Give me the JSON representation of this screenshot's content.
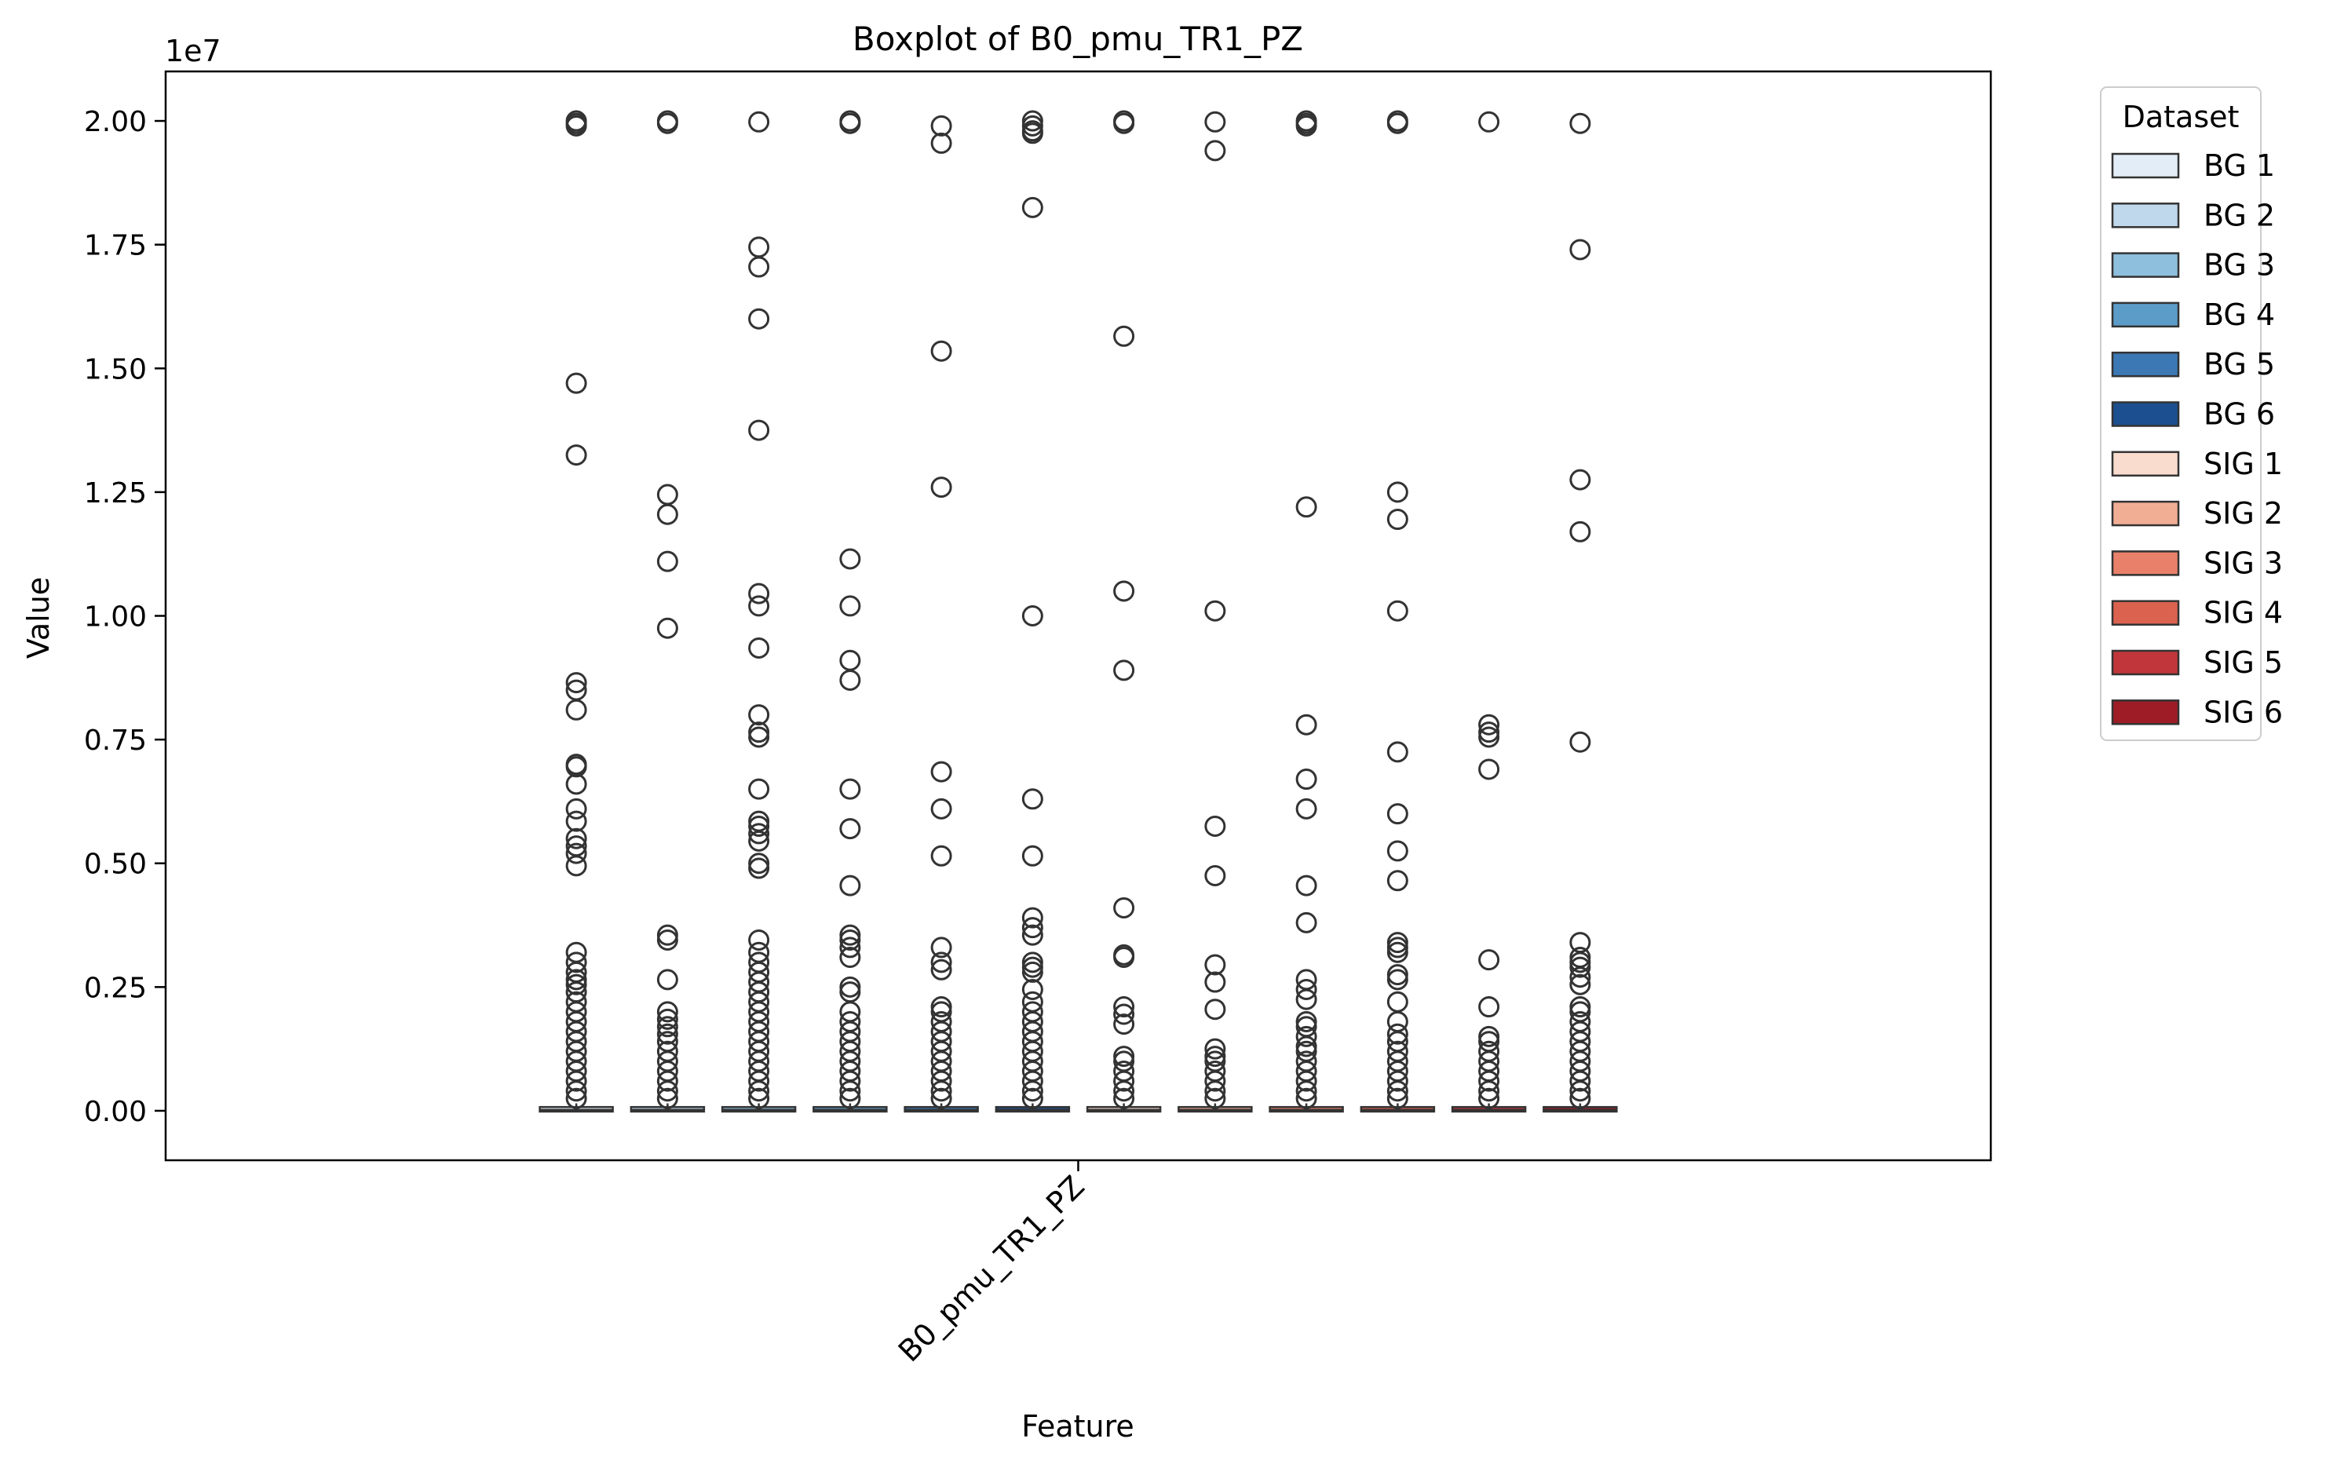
{
  "chart_data": {
    "type": "boxplot",
    "title": "Boxplot of B0_pmu_TR1_PZ",
    "xlabel": "Feature",
    "ylabel": "Value",
    "y_scale_label": "1e7",
    "y_multiplier": 10000000,
    "ylim": [
      -0.1,
      2.1
    ],
    "yticks": [
      0.0,
      0.25,
      0.5,
      0.75,
      1.0,
      1.25,
      1.5,
      1.75,
      2.0
    ],
    "ytick_labels": [
      "0.00",
      "0.25",
      "0.50",
      "0.75",
      "1.00",
      "1.25",
      "1.50",
      "1.75",
      "2.00"
    ],
    "categories": [
      "B0_pmu_TR1_PZ"
    ],
    "legend": {
      "title": "Dataset",
      "placement": "outside-right",
      "entries": [
        "BG 1",
        "BG 2",
        "BG 3",
        "BG 4",
        "BG 5",
        "BG 6",
        "SIG 1",
        "SIG 2",
        "SIG 3",
        "SIG 4",
        "SIG 5",
        "SIG 6"
      ]
    },
    "series": [
      {
        "name": "BG 1",
        "color": "#e2edf8",
        "q1": 0.0,
        "median": 0.002,
        "q3": 0.006,
        "whisker_low": 0.0,
        "whisker_high": 0.015,
        "outliers": [
          2.0,
          1.995,
          1.99,
          1.47,
          1.325,
          0.865,
          0.85,
          0.81,
          0.7,
          0.695,
          0.66,
          0.61,
          0.585,
          0.55,
          0.535,
          0.52,
          0.495,
          0.32,
          0.3,
          0.28,
          0.265,
          0.255,
          0.24,
          0.22,
          0.2,
          0.18,
          0.16,
          0.14,
          0.12,
          0.1,
          0.08,
          0.06,
          0.04,
          0.025
        ]
      },
      {
        "name": "BG 2",
        "color": "#bfd8ec",
        "q1": 0.0,
        "median": 0.002,
        "q3": 0.006,
        "whisker_low": 0.0,
        "whisker_high": 0.015,
        "outliers": [
          2.0,
          1.995,
          1.245,
          1.205,
          1.11,
          0.975,
          0.355,
          0.345,
          0.265,
          0.2,
          0.185,
          0.17,
          0.155,
          0.14,
          0.12,
          0.1,
          0.08,
          0.06,
          0.04,
          0.025
        ]
      },
      {
        "name": "BG 3",
        "color": "#8ebfdd",
        "q1": 0.0,
        "median": 0.002,
        "q3": 0.006,
        "whisker_low": 0.0,
        "whisker_high": 0.015,
        "outliers": [
          1.998,
          1.745,
          1.705,
          1.6,
          1.375,
          1.045,
          1.02,
          0.935,
          0.8,
          0.765,
          0.755,
          0.65,
          0.585,
          0.575,
          0.56,
          0.545,
          0.5,
          0.49,
          0.345,
          0.32,
          0.3,
          0.28,
          0.26,
          0.24,
          0.22,
          0.2,
          0.18,
          0.16,
          0.14,
          0.12,
          0.1,
          0.08,
          0.06,
          0.04,
          0.025
        ]
      },
      {
        "name": "BG 4",
        "color": "#5c9cc9",
        "q1": 0.0,
        "median": 0.002,
        "q3": 0.006,
        "whisker_low": 0.0,
        "whisker_high": 0.015,
        "outliers": [
          2.0,
          1.995,
          1.115,
          1.02,
          0.91,
          0.87,
          0.65,
          0.57,
          0.455,
          0.355,
          0.345,
          0.33,
          0.31,
          0.25,
          0.24,
          0.2,
          0.18,
          0.16,
          0.14,
          0.12,
          0.1,
          0.08,
          0.06,
          0.04,
          0.025
        ]
      },
      {
        "name": "BG 5",
        "color": "#3b78b4",
        "q1": 0.0,
        "median": 0.002,
        "q3": 0.006,
        "whisker_low": 0.0,
        "whisker_high": 0.015,
        "outliers": [
          1.99,
          1.955,
          1.535,
          1.26,
          0.685,
          0.61,
          0.515,
          0.33,
          0.3,
          0.285,
          0.21,
          0.2,
          0.18,
          0.16,
          0.14,
          0.12,
          0.1,
          0.08,
          0.06,
          0.04,
          0.025
        ]
      },
      {
        "name": "BG 6",
        "color": "#1c4f8f",
        "q1": 0.0,
        "median": 0.002,
        "q3": 0.006,
        "whisker_low": 0.0,
        "whisker_high": 0.015,
        "outliers": [
          2.0,
          1.99,
          1.98,
          1.975,
          1.825,
          1.0,
          0.63,
          0.515,
          0.39,
          0.37,
          0.355,
          0.3,
          0.29,
          0.28,
          0.245,
          0.22,
          0.2,
          0.18,
          0.16,
          0.14,
          0.12,
          0.1,
          0.08,
          0.06,
          0.04,
          0.025
        ]
      },
      {
        "name": "SIG 1",
        "color": "#f9dccd",
        "q1": 0.0,
        "median": 0.002,
        "q3": 0.006,
        "whisker_low": 0.0,
        "whisker_high": 0.015,
        "outliers": [
          2.0,
          1.995,
          1.565,
          1.05,
          0.89,
          0.41,
          0.315,
          0.31,
          0.21,
          0.195,
          0.175,
          0.11,
          0.1,
          0.08,
          0.06,
          0.04,
          0.025
        ]
      },
      {
        "name": "SIG 2",
        "color": "#f2ae94",
        "q1": 0.0,
        "median": 0.002,
        "q3": 0.006,
        "whisker_low": 0.0,
        "whisker_high": 0.015,
        "outliers": [
          1.998,
          1.94,
          1.01,
          0.575,
          0.475,
          0.295,
          0.26,
          0.205,
          0.125,
          0.11,
          0.1,
          0.08,
          0.06,
          0.04,
          0.025
        ]
      },
      {
        "name": "SIG 3",
        "color": "#e9816a",
        "q1": 0.0,
        "median": 0.002,
        "q3": 0.006,
        "whisker_low": 0.0,
        "whisker_high": 0.015,
        "outliers": [
          2.0,
          1.995,
          1.99,
          1.22,
          0.78,
          0.67,
          0.61,
          0.455,
          0.38,
          0.265,
          0.245,
          0.225,
          0.18,
          0.17,
          0.15,
          0.13,
          0.12,
          0.1,
          0.08,
          0.06,
          0.04,
          0.025
        ]
      },
      {
        "name": "SIG 4",
        "color": "#dc6250",
        "q1": 0.0,
        "median": 0.002,
        "q3": 0.006,
        "whisker_low": 0.0,
        "whisker_high": 0.015,
        "outliers": [
          2.0,
          1.995,
          1.25,
          1.195,
          1.01,
          0.725,
          0.6,
          0.525,
          0.465,
          0.34,
          0.33,
          0.32,
          0.275,
          0.265,
          0.22,
          0.18,
          0.155,
          0.14,
          0.12,
          0.1,
          0.08,
          0.06,
          0.04,
          0.025
        ]
      },
      {
        "name": "SIG 5",
        "color": "#c1363a",
        "q1": 0.0,
        "median": 0.002,
        "q3": 0.006,
        "whisker_low": 0.0,
        "whisker_high": 0.015,
        "outliers": [
          1.998,
          0.78,
          0.765,
          0.755,
          0.69,
          0.305,
          0.21,
          0.15,
          0.14,
          0.12,
          0.1,
          0.08,
          0.06,
          0.04,
          0.025
        ]
      },
      {
        "name": "SIG 6",
        "color": "#9e1c26",
        "q1": 0.0,
        "median": 0.002,
        "q3": 0.006,
        "whisker_low": 0.0,
        "whisker_high": 0.015,
        "outliers": [
          1.995,
          1.74,
          1.275,
          1.17,
          0.745,
          0.34,
          0.31,
          0.3,
          0.29,
          0.27,
          0.255,
          0.21,
          0.2,
          0.18,
          0.16,
          0.14,
          0.12,
          0.1,
          0.08,
          0.06,
          0.04,
          0.025
        ]
      }
    ]
  }
}
